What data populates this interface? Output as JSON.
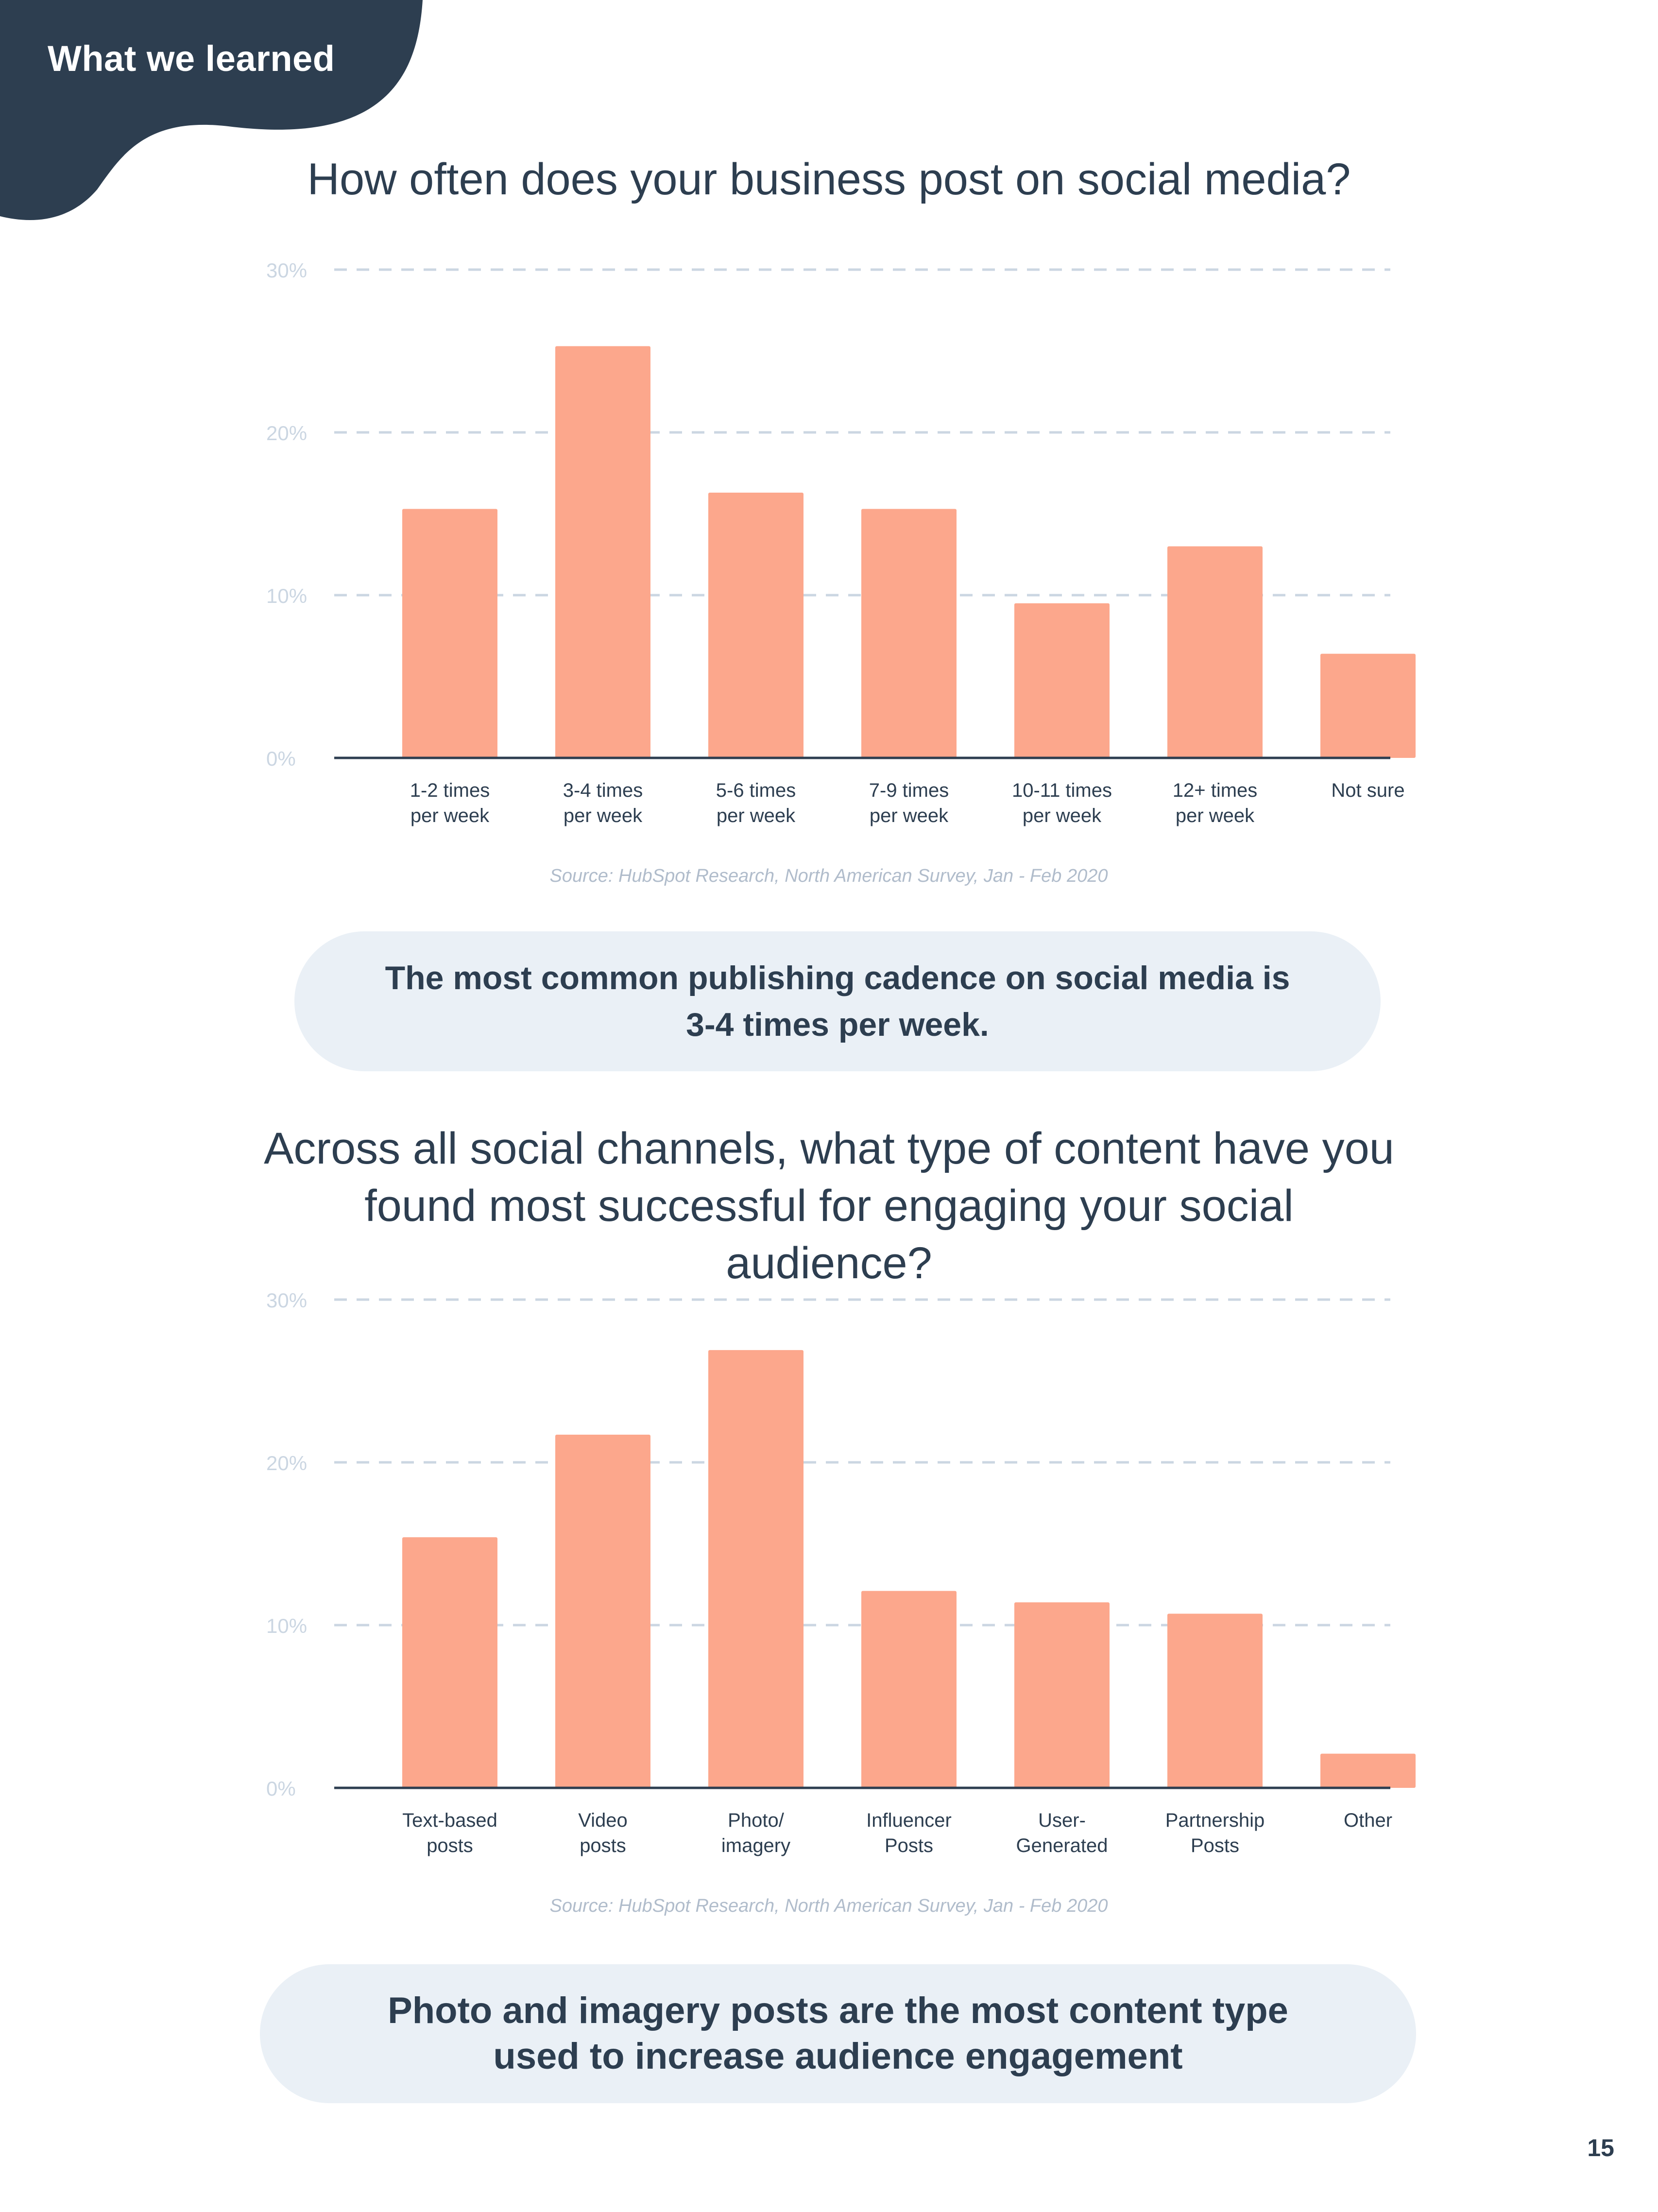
{
  "header": {
    "section_label": "What we learned"
  },
  "colors": {
    "bar": "#fca78c",
    "navy": "#2d3e50",
    "grid": "#cbd6e2",
    "axis_text": "#cbd6e2",
    "source_text": "#b0bccb",
    "callout_bg": "#eaf0f6"
  },
  "chart_data": [
    {
      "type": "bar",
      "title": "How often does your business post on social media?",
      "categories": [
        [
          "1-2 times",
          "per week"
        ],
        [
          "3-4 times",
          "per week"
        ],
        [
          "5-6 times",
          "per week"
        ],
        [
          "7-9 times",
          "per week"
        ],
        [
          "10-11 times",
          "per week"
        ],
        [
          "12+ times",
          "per week"
        ],
        [
          "Not sure"
        ]
      ],
      "values": [
        15.3,
        25.3,
        16.3,
        15.3,
        9.5,
        13.0,
        6.4
      ],
      "yticks": [
        "0%",
        "10%",
        "20%",
        "30%"
      ],
      "ylim": [
        0,
        30
      ],
      "xlabel": "",
      "ylabel": "",
      "source": "Source: HubSpot Research, North American Survey, Jan - Feb 2020"
    },
    {
      "type": "bar",
      "title": "Across all social channels, what type of content have you found most successful for engaging your social audience?",
      "categories": [
        [
          "Text-based",
          "posts"
        ],
        [
          "Video",
          "posts"
        ],
        [
          "Photo/",
          "imagery"
        ],
        [
          "Influencer",
          "Posts"
        ],
        [
          "User-",
          "Generated"
        ],
        [
          "Partnership",
          "Posts"
        ],
        [
          "Other"
        ]
      ],
      "values": [
        15.4,
        21.7,
        26.9,
        12.1,
        11.4,
        10.7,
        2.1
      ],
      "yticks": [
        "0%",
        "10%",
        "20%",
        "30%"
      ],
      "ylim": [
        0,
        30
      ],
      "xlabel": "",
      "ylabel": "",
      "source": "Source: HubSpot Research, North American Survey, Jan - Feb 2020"
    }
  ],
  "callouts": [
    "The most common publishing cadence on social media is 3-4 times per week.",
    "Photo and imagery posts are the most content type used to increase audience engagement"
  ],
  "page_number": "15"
}
